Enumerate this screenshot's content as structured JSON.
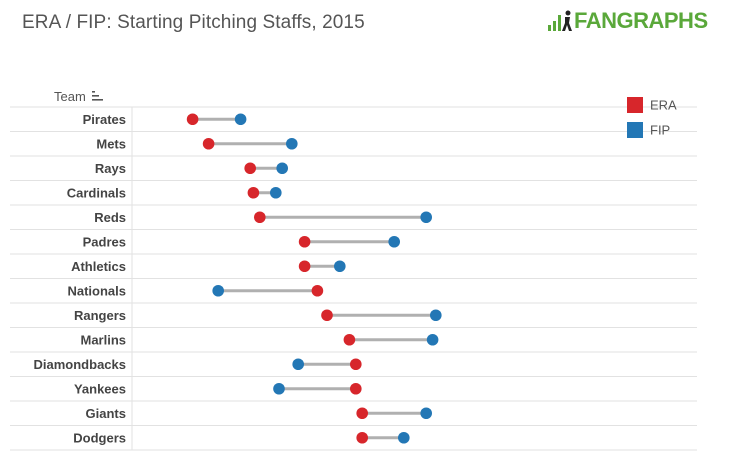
{
  "header": {
    "title": "ERA / FIP: Starting Pitching Staffs, 2015",
    "logo_text": "FANGRAPHS",
    "team_column_label": "Team"
  },
  "colors": {
    "era": "#d7262b",
    "fip": "#2377b5",
    "connector": "#b0b0b0",
    "logo": "#5aa83a"
  },
  "icons": [
    "sort-icon",
    "fangraphs-logo-icon"
  ],
  "chart_data": {
    "type": "dumbbell",
    "title": "ERA / FIP: Starting Pitching Staffs, 2015",
    "row_header": "Team",
    "xlim": [
      2.9,
      4.8
    ],
    "legend": {
      "placement": "top-right",
      "entries": [
        {
          "name": "ERA",
          "color": "#d7262b"
        },
        {
          "name": "FIP",
          "color": "#2377b5"
        }
      ]
    },
    "grid": "horizontal row separators",
    "series": [
      {
        "name": "ERA",
        "key": "era"
      },
      {
        "name": "FIP",
        "key": "fip"
      }
    ],
    "rows": [
      {
        "team": "Pirates",
        "era": 3.08,
        "fip": 3.23
      },
      {
        "team": "Mets",
        "era": 3.13,
        "fip": 3.39
      },
      {
        "team": "Rays",
        "era": 3.26,
        "fip": 3.36
      },
      {
        "team": "Cardinals",
        "era": 3.27,
        "fip": 3.34
      },
      {
        "team": "Reds",
        "era": 3.29,
        "fip": 3.81
      },
      {
        "team": "Padres",
        "era": 3.43,
        "fip": 3.71
      },
      {
        "team": "Athletics",
        "era": 3.43,
        "fip": 3.54
      },
      {
        "team": "Nationals",
        "era": 3.47,
        "fip": 3.16
      },
      {
        "team": "Rangers",
        "era": 3.5,
        "fip": 3.84
      },
      {
        "team": "Marlins",
        "era": 3.57,
        "fip": 3.83
      },
      {
        "team": "Diamondbacks",
        "era": 3.59,
        "fip": 3.41
      },
      {
        "team": "Yankees",
        "era": 3.59,
        "fip": 3.35
      },
      {
        "team": "Giants",
        "era": 3.61,
        "fip": 3.81
      },
      {
        "team": "Dodgers",
        "era": 3.61,
        "fip": 3.74
      }
    ]
  }
}
